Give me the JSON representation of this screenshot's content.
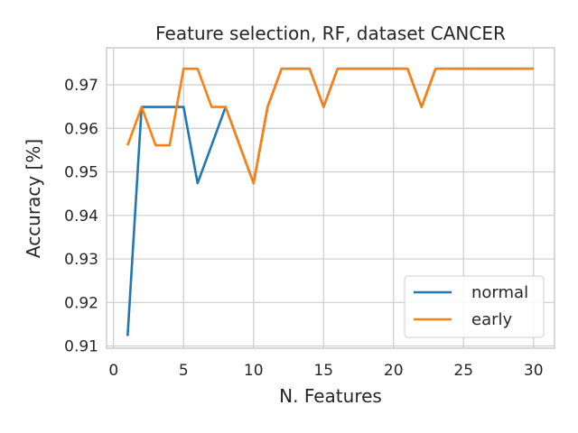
{
  "chart_data": {
    "type": "line",
    "title": "Feature selection, RF, dataset CANCER",
    "xlabel": "N. Features",
    "ylabel": "Accuracy [%]",
    "xlim": [
      -0.5,
      31.5
    ],
    "ylim": [
      0.9095,
      0.9785
    ],
    "xticks": [
      0,
      5,
      10,
      15,
      20,
      25,
      30
    ],
    "yticks": [
      0.91,
      0.92,
      0.93,
      0.94,
      0.95,
      0.96,
      0.97
    ],
    "grid": true,
    "legend_position": "lower-right",
    "series": [
      {
        "name": "normal",
        "color": "#1f77b4",
        "x": [
          1,
          2,
          3,
          4,
          5,
          6,
          7,
          8,
          9,
          10,
          11,
          12,
          13,
          14,
          15,
          16,
          17,
          18,
          19,
          20,
          21,
          22,
          23,
          24,
          25,
          26,
          27,
          28,
          29,
          30
        ],
        "values": [
          0.9123,
          0.9649,
          0.9649,
          0.9649,
          0.9649,
          0.9474,
          0.9561,
          0.9649,
          0.9561,
          0.9474,
          0.9649,
          0.9737,
          0.9737,
          0.9737,
          0.9649,
          0.9737,
          0.9737,
          0.9737,
          0.9737,
          0.9737,
          0.9737,
          0.9649,
          0.9737,
          0.9737,
          0.9737,
          0.9737,
          0.9737,
          0.9737,
          0.9737,
          0.9737
        ]
      },
      {
        "name": "early",
        "color": "#ff7f0e",
        "x": [
          1,
          2,
          3,
          4,
          5,
          6,
          7,
          8,
          9,
          10,
          11,
          12,
          13,
          14,
          15,
          16,
          17,
          18,
          19,
          20,
          21,
          22,
          23,
          24,
          25,
          26,
          27,
          28,
          29,
          30
        ],
        "values": [
          0.9561,
          0.9649,
          0.9561,
          0.9561,
          0.9737,
          0.9737,
          0.9649,
          0.9649,
          0.9561,
          0.9474,
          0.9649,
          0.9737,
          0.9737,
          0.9737,
          0.9649,
          0.9737,
          0.9737,
          0.9737,
          0.9737,
          0.9737,
          0.9737,
          0.9649,
          0.9737,
          0.9737,
          0.9737,
          0.9737,
          0.9737,
          0.9737,
          0.9737,
          0.9737
        ]
      }
    ]
  }
}
